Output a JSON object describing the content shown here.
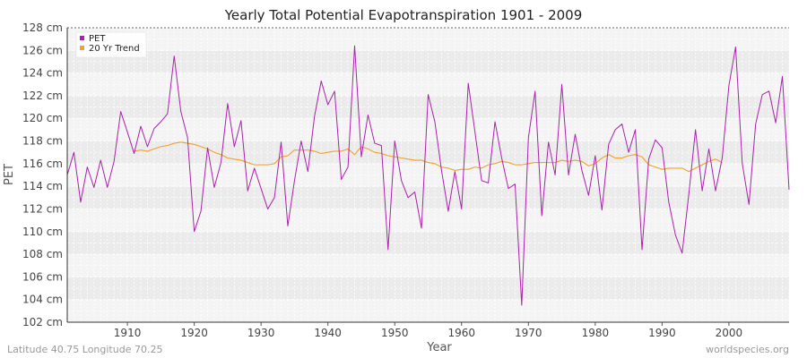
{
  "chart_data": {
    "type": "line",
    "title": "Yearly Total Potential Evapotranspiration 1901 - 2009",
    "xlabel": "Year",
    "ylabel": "PET",
    "xlim": [
      1901,
      2009
    ],
    "ylim": [
      102,
      128
    ],
    "x_ticks": [
      1910,
      1920,
      1930,
      1940,
      1950,
      1960,
      1970,
      1980,
      1990,
      2000
    ],
    "y_ticks": [
      102,
      104,
      106,
      108,
      110,
      112,
      114,
      116,
      118,
      120,
      122,
      124,
      126,
      128
    ],
    "y_tick_labels": [
      "102 cm",
      "104 cm",
      "106 cm",
      "108 cm",
      "110 cm",
      "112 cm",
      "114 cm",
      "116 cm",
      "118 cm",
      "120 cm",
      "122 cm",
      "124 cm",
      "126 cm",
      "128 cm"
    ],
    "grid": true,
    "legend_position": "top-left",
    "footer_left": "Latitude 40.75 Longitude 70.25",
    "footer_right": "worldspecies.org",
    "series": [
      {
        "name": "PET",
        "color": "#aa22aa",
        "x": [
          1901,
          1902,
          1903,
          1904,
          1905,
          1906,
          1907,
          1908,
          1909,
          1910,
          1911,
          1912,
          1913,
          1914,
          1915,
          1916,
          1917,
          1918,
          1919,
          1920,
          1921,
          1922,
          1923,
          1924,
          1925,
          1926,
          1927,
          1928,
          1929,
          1930,
          1931,
          1932,
          1933,
          1934,
          1935,
          1936,
          1937,
          1938,
          1939,
          1940,
          1941,
          1942,
          1943,
          1944,
          1945,
          1946,
          1947,
          1948,
          1949,
          1950,
          1951,
          1952,
          1953,
          1954,
          1955,
          1956,
          1957,
          1958,
          1959,
          1960,
          1961,
          1962,
          1963,
          1964,
          1965,
          1966,
          1967,
          1968,
          1969,
          1970,
          1971,
          1972,
          1973,
          1974,
          1975,
          1976,
          1977,
          1978,
          1979,
          1980,
          1981,
          1982,
          1983,
          1984,
          1985,
          1986,
          1987,
          1988,
          1989,
          1990,
          1991,
          1992,
          1993,
          1994,
          1995,
          1996,
          1997,
          1998,
          1999,
          2000,
          2001,
          2002,
          2003,
          2004,
          2005,
          2006,
          2007,
          2008,
          2009
        ],
        "values": [
          115.0,
          117.0,
          112.6,
          115.7,
          113.9,
          116.3,
          113.9,
          116.2,
          120.6,
          118.8,
          116.9,
          119.3,
          117.5,
          119.1,
          119.7,
          120.4,
          125.5,
          120.6,
          118.3,
          110.0,
          111.8,
          117.4,
          113.9,
          116.1,
          121.3,
          117.5,
          119.8,
          113.6,
          115.6,
          113.8,
          112.0,
          113.0,
          117.9,
          110.5,
          114.5,
          118.0,
          115.3,
          120.2,
          123.3,
          121.2,
          122.4,
          114.6,
          115.7,
          126.4,
          116.6,
          120.3,
          117.8,
          117.6,
          108.4,
          118.0,
          114.5,
          113.0,
          113.5,
          110.3,
          122.1,
          119.7,
          115.4,
          111.8,
          115.3,
          112.0,
          123.1,
          118.8,
          114.5,
          114.3,
          119.7,
          116.5,
          113.8,
          114.2,
          103.5,
          118.3,
          122.4,
          111.4,
          117.9,
          115.0,
          123.0,
          115.0,
          118.6,
          115.4,
          113.2,
          116.7,
          111.9,
          117.7,
          119.0,
          119.5,
          117.0,
          119.0,
          108.4,
          116.4,
          118.1,
          117.4,
          112.6,
          109.7,
          108.1,
          113.3,
          119.0,
          113.6,
          117.3,
          113.6,
          116.5,
          122.9,
          126.3,
          116.0,
          112.4,
          119.5,
          122.1,
          122.4,
          119.6,
          123.7,
          113.7
        ]
      },
      {
        "name": "20 Yr Trend",
        "color": "#f2a12b",
        "x": [
          1911,
          1912,
          1913,
          1914,
          1915,
          1916,
          1917,
          1918,
          1919,
          1920,
          1921,
          1922,
          1923,
          1924,
          1925,
          1926,
          1927,
          1928,
          1929,
          1930,
          1931,
          1932,
          1933,
          1934,
          1935,
          1936,
          1937,
          1938,
          1939,
          1940,
          1941,
          1942,
          1943,
          1944,
          1945,
          1946,
          1947,
          1948,
          1949,
          1950,
          1951,
          1952,
          1953,
          1954,
          1955,
          1956,
          1957,
          1958,
          1959,
          1960,
          1961,
          1962,
          1963,
          1964,
          1965,
          1966,
          1967,
          1968,
          1969,
          1970,
          1971,
          1972,
          1973,
          1974,
          1975,
          1976,
          1977,
          1978,
          1979,
          1980,
          1981,
          1982,
          1983,
          1984,
          1985,
          1986,
          1987,
          1988,
          1989,
          1990,
          1991,
          1992,
          1993,
          1994,
          1995,
          1996,
          1997,
          1998,
          1999
        ],
        "values": [
          117.1,
          117.2,
          117.1,
          117.3,
          117.5,
          117.6,
          117.8,
          117.9,
          117.8,
          117.7,
          117.5,
          117.3,
          117.0,
          116.8,
          116.5,
          116.4,
          116.3,
          116.1,
          115.9,
          115.9,
          115.9,
          116.0,
          116.6,
          116.7,
          117.2,
          117.2,
          117.2,
          117.1,
          116.9,
          117.0,
          117.1,
          117.1,
          117.3,
          116.8,
          117.5,
          117.3,
          117.0,
          116.9,
          116.7,
          116.6,
          116.5,
          116.4,
          116.3,
          116.3,
          116.1,
          116.0,
          115.7,
          115.6,
          115.4,
          115.5,
          115.5,
          115.7,
          115.6,
          115.9,
          116.0,
          116.2,
          116.1,
          115.9,
          115.9,
          116.0,
          116.1,
          116.1,
          116.1,
          116.1,
          116.3,
          116.2,
          116.3,
          116.2,
          115.8,
          116.0,
          116.5,
          116.8,
          116.5,
          116.5,
          116.7,
          116.8,
          116.6,
          115.9,
          115.7,
          115.5,
          115.6,
          115.6,
          115.6,
          115.3,
          115.6,
          115.9,
          116.2,
          116.4,
          116.1
        ]
      }
    ]
  }
}
